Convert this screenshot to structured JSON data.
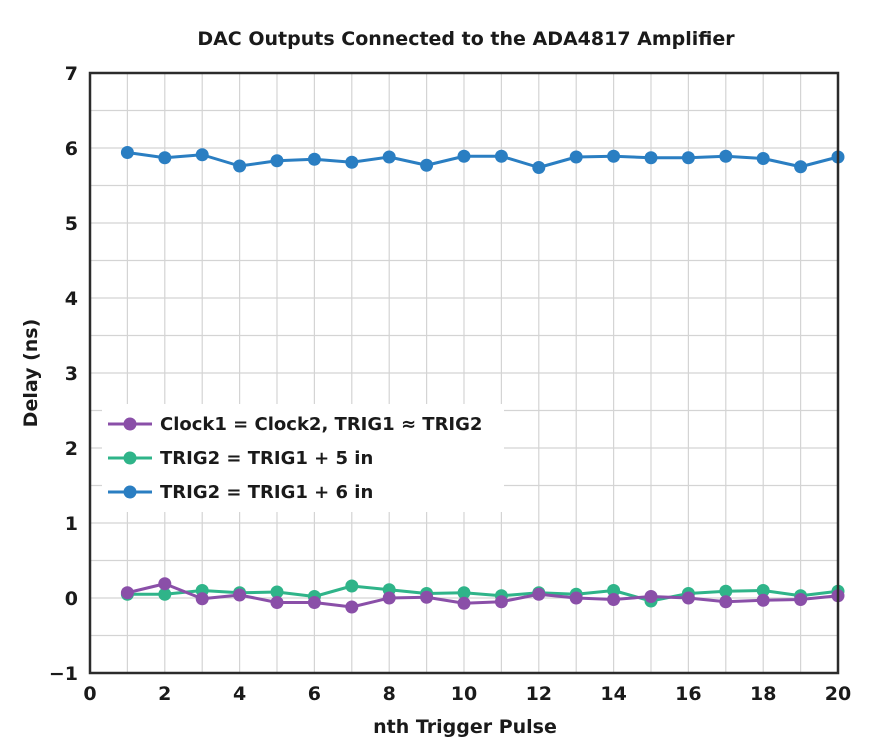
{
  "chart_data": {
    "type": "line",
    "title": "DAC Outputs Connected to the ADA4817 Amplifier",
    "xlabel": "nth Trigger Pulse",
    "ylabel": "Delay (ns)",
    "xlim": [
      0,
      20
    ],
    "ylim": [
      -1,
      7
    ],
    "xticks": [
      0,
      2,
      4,
      6,
      8,
      10,
      12,
      14,
      16,
      18,
      20
    ],
    "yticks": [
      -1,
      0,
      1,
      2,
      3,
      4,
      5,
      6,
      7
    ],
    "ytick_labels": [
      "−1",
      "0",
      "1",
      "2",
      "3",
      "4",
      "5",
      "6",
      "7"
    ],
    "grid": true,
    "legend_position": "center-left",
    "x": [
      1,
      2,
      3,
      4,
      5,
      6,
      7,
      8,
      9,
      10,
      11,
      12,
      13,
      14,
      15,
      16,
      17,
      18,
      19,
      20
    ],
    "series": [
      {
        "name": "Clock1 = Clock2, TRIG1 ≈ TRIG2",
        "color": "#8a4fa8",
        "values": [
          0.07,
          0.19,
          -0.01,
          0.04,
          -0.06,
          -0.06,
          -0.12,
          0.0,
          0.01,
          -0.07,
          -0.05,
          0.05,
          0.0,
          -0.02,
          0.02,
          0.0,
          -0.05,
          -0.03,
          -0.02,
          0.03
        ]
      },
      {
        "name": "TRIG2 = TRIG1 + 5 in",
        "color": "#2fb489",
        "values": [
          0.05,
          0.05,
          0.1,
          0.07,
          0.08,
          0.02,
          0.16,
          0.11,
          0.06,
          0.07,
          0.03,
          0.07,
          0.05,
          0.1,
          -0.04,
          0.06,
          0.09,
          0.1,
          0.03,
          0.09
        ]
      },
      {
        "name": "TRIG2 = TRIG1 + 6 in",
        "color": "#2a7ec2",
        "values": [
          5.94,
          5.87,
          5.91,
          5.76,
          5.83,
          5.85,
          5.81,
          5.88,
          5.77,
          5.89,
          5.89,
          5.74,
          5.88,
          5.89,
          5.87,
          5.87,
          5.89,
          5.86,
          5.75,
          5.88
        ]
      }
    ]
  }
}
